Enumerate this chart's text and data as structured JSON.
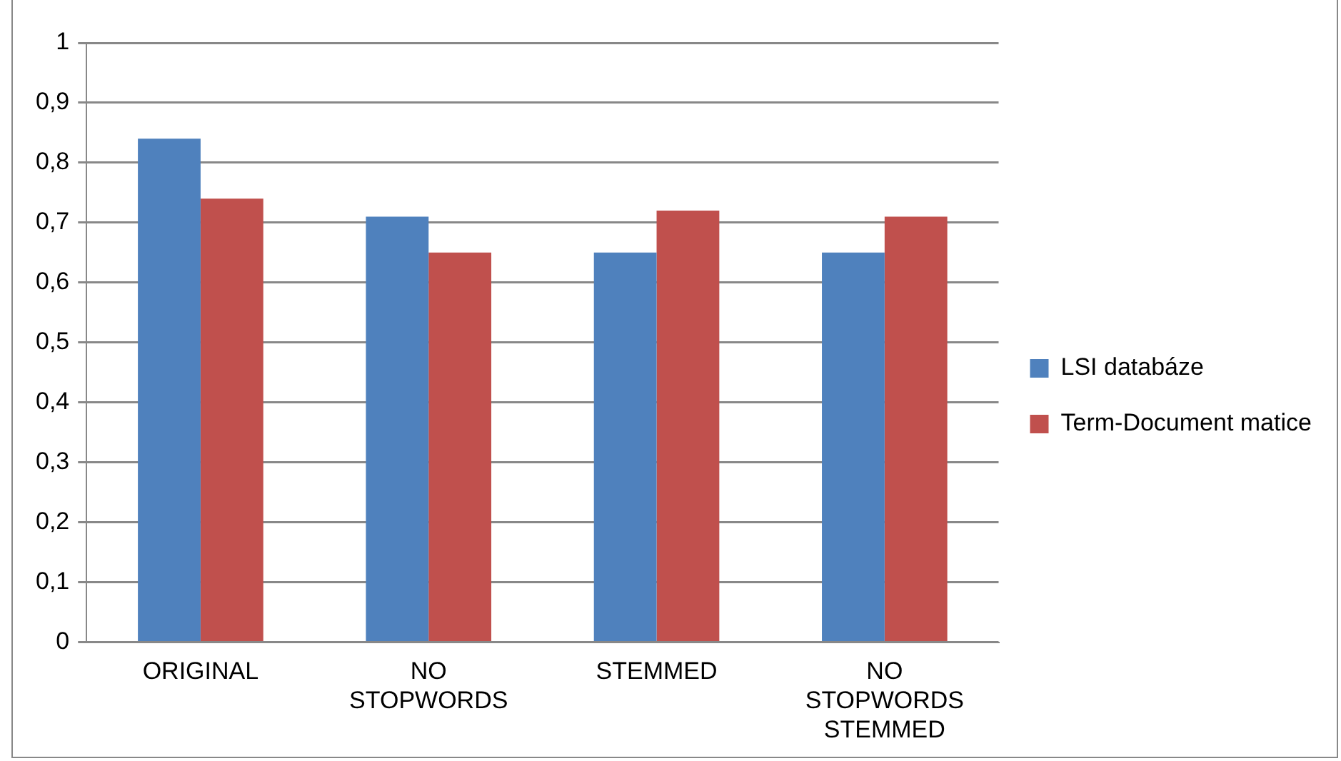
{
  "chart_data": {
    "type": "bar",
    "categories": [
      "ORIGINAL",
      "NO STOPWORDS",
      "STEMMED",
      "NO STOPWORDS STEMMED"
    ],
    "series": [
      {
        "name": "LSI databáze",
        "color": "#4f81bd",
        "values": [
          0.84,
          0.71,
          0.65,
          0.65
        ]
      },
      {
        "name": "Term-Document matice",
        "color": "#c0504d",
        "values": [
          0.74,
          0.65,
          0.72,
          0.71
        ]
      }
    ],
    "ylim": [
      0,
      1
    ],
    "yticks": [
      0,
      {
        "value": 0.1,
        "label": "0,1"
      },
      {
        "value": 0.2,
        "label": "0,2"
      },
      {
        "value": 0.3,
        "label": "0,3"
      },
      {
        "value": 0.4,
        "label": "0,4"
      },
      {
        "value": 0.5,
        "label": "0,5"
      },
      {
        "value": 0.6,
        "label": "0,6"
      },
      {
        "value": 0.7,
        "label": "0,7"
      },
      {
        "value": 0.8,
        "label": "0,8"
      },
      {
        "value": 0.9,
        "label": "0,9"
      },
      1
    ],
    "grid": "y",
    "legend": "right"
  }
}
